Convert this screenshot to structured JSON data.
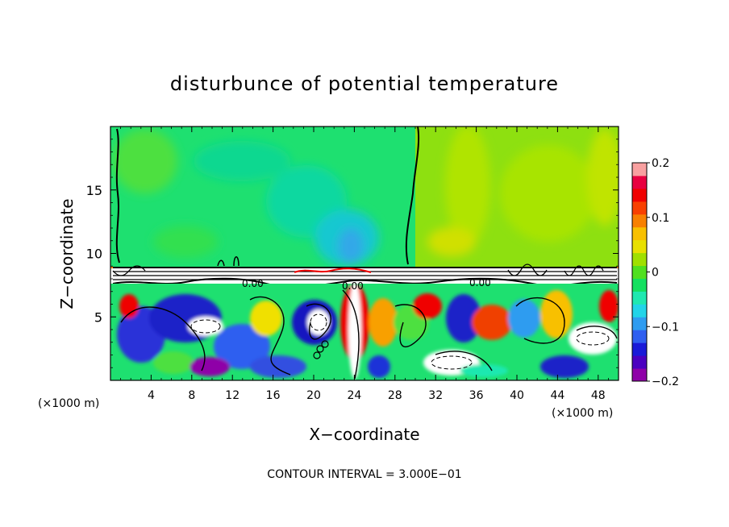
{
  "chart_data": {
    "type": "heatmap",
    "title": "disturbunce of potential temperature",
    "xlabel": "X−coordinate",
    "ylabel": "Z−coordinate",
    "x_unit_left": "(×1000 m)",
    "x_unit_right": "(×1000 m)",
    "xlim": [
      0,
      50
    ],
    "ylim": [
      0,
      20
    ],
    "x_ticks": [
      "4",
      "8",
      "12",
      "16",
      "20",
      "24",
      "28",
      "32",
      "36",
      "40",
      "44",
      "48"
    ],
    "y_ticks": [
      "5",
      "10",
      "15"
    ],
    "colorbar": {
      "range": [
        -0.2,
        0.2
      ],
      "tick_labels": [
        "0.2",
        "0.1",
        "0",
        "−0.1",
        "−0.2"
      ],
      "colors": [
        "#8f00a8",
        "#4b00c0",
        "#1a1ad8",
        "#2f5ff0",
        "#2f9cf0",
        "#22d4e8",
        "#1fe8b0",
        "#14e060",
        "#50e020",
        "#a0e000",
        "#e8e000",
        "#f8c000",
        "#f88000",
        "#f84000",
        "#f00000",
        "#e80040",
        "#f8a0a0"
      ]
    },
    "contour_labels": [
      "0.00",
      "0.00",
      "0.00"
    ],
    "footer": "CONTOUR INTERVAL = 3.000E−01"
  }
}
